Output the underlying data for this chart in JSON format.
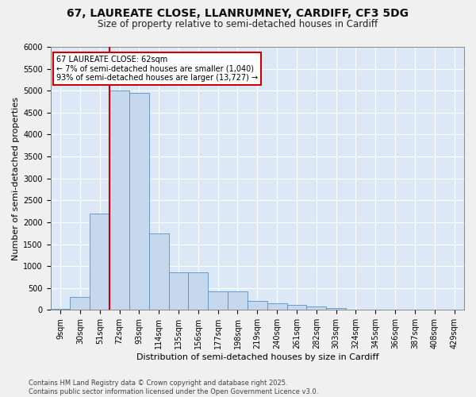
{
  "title": "67, LAUREATE CLOSE, LLANRUMNEY, CARDIFF, CF3 5DG",
  "subtitle": "Size of property relative to semi-detached houses in Cardiff",
  "xlabel": "Distribution of semi-detached houses by size in Cardiff",
  "ylabel": "Number of semi-detached properties",
  "categories": [
    "9sqm",
    "30sqm",
    "51sqm",
    "72sqm",
    "93sqm",
    "114sqm",
    "135sqm",
    "156sqm",
    "177sqm",
    "198sqm",
    "219sqm",
    "240sqm",
    "261sqm",
    "282sqm",
    "303sqm",
    "324sqm",
    "345sqm",
    "366sqm",
    "387sqm",
    "408sqm",
    "429sqm"
  ],
  "values": [
    25,
    290,
    2200,
    5000,
    4950,
    1750,
    850,
    850,
    430,
    430,
    200,
    160,
    110,
    70,
    40,
    15,
    12,
    5,
    3,
    3,
    3
  ],
  "bar_color": "#c5d8ee",
  "bar_edge_color": "#5a8fc0",
  "vline_index": 2.5,
  "vline_color": "#cc0000",
  "annotation_text": "67 LAUREATE CLOSE: 62sqm\n← 7% of semi-detached houses are smaller (1,040)\n93% of semi-detached houses are larger (13,727) →",
  "annotation_box_color": "#ffffff",
  "annotation_box_edge": "#cc0000",
  "footer": "Contains HM Land Registry data © Crown copyright and database right 2025.\nContains public sector information licensed under the Open Government Licence v3.0.",
  "ylim": [
    0,
    6000
  ],
  "yticks": [
    0,
    500,
    1000,
    1500,
    2000,
    2500,
    3000,
    3500,
    4000,
    4500,
    5000,
    5500,
    6000
  ],
  "bg_color": "#dce8f5",
  "grid_color": "#ffffff",
  "title_fontsize": 10,
  "subtitle_fontsize": 8.5,
  "axis_label_fontsize": 8,
  "tick_fontsize": 7,
  "footer_fontsize": 6
}
